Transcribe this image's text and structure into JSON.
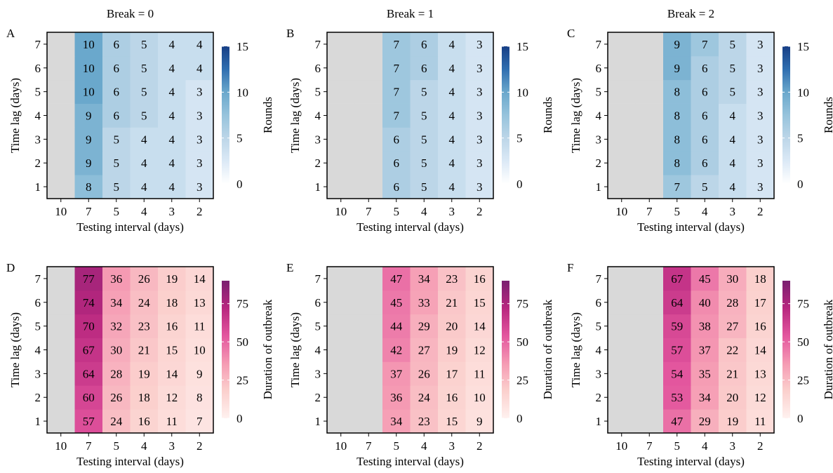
{
  "chart_data": [
    {
      "type": "heatmap",
      "panel_label": "A",
      "title": "Break = 0",
      "xlabel": "Testing interval (days)",
      "ylabel": "Time lag (days)",
      "x_categories": [
        "10",
        "7",
        "5",
        "4",
        "3",
        "2"
      ],
      "y_categories": [
        "1",
        "2",
        "3",
        "4",
        "5",
        "6",
        "7"
      ],
      "values": [
        [
          null,
          8,
          5,
          4,
          4,
          3
        ],
        [
          null,
          9,
          5,
          4,
          4,
          3
        ],
        [
          null,
          9,
          5,
          4,
          4,
          3
        ],
        [
          null,
          9,
          6,
          5,
          4,
          3
        ],
        [
          null,
          10,
          6,
          5,
          4,
          3
        ],
        [
          null,
          10,
          6,
          5,
          4,
          4
        ],
        [
          null,
          10,
          6,
          5,
          4,
          4
        ]
      ],
      "colorbar": {
        "label": "Rounds",
        "range": [
          0,
          15
        ],
        "ticks": [
          0,
          5,
          10,
          15
        ],
        "palette": "blue"
      },
      "missing_color": "#d9d9d9"
    },
    {
      "type": "heatmap",
      "panel_label": "B",
      "title": "Break = 1",
      "xlabel": "Testing interval (days)",
      "ylabel": "Time lag (days)",
      "x_categories": [
        "10",
        "7",
        "5",
        "4",
        "3",
        "2"
      ],
      "y_categories": [
        "1",
        "2",
        "3",
        "4",
        "5",
        "6",
        "7"
      ],
      "values": [
        [
          null,
          null,
          6,
          5,
          4,
          3
        ],
        [
          null,
          null,
          6,
          5,
          4,
          3
        ],
        [
          null,
          null,
          6,
          5,
          4,
          3
        ],
        [
          null,
          null,
          7,
          5,
          4,
          3
        ],
        [
          null,
          null,
          7,
          5,
          4,
          3
        ],
        [
          null,
          null,
          7,
          6,
          4,
          3
        ],
        [
          null,
          null,
          7,
          6,
          4,
          3
        ]
      ],
      "colorbar": {
        "label": "Rounds",
        "range": [
          0,
          15
        ],
        "ticks": [
          0,
          5,
          10,
          15
        ],
        "palette": "blue"
      },
      "missing_color": "#d9d9d9"
    },
    {
      "type": "heatmap",
      "panel_label": "C",
      "title": "Break = 2",
      "xlabel": "Testing interval (days)",
      "ylabel": "Time lag (days)",
      "x_categories": [
        "10",
        "7",
        "5",
        "4",
        "3",
        "2"
      ],
      "y_categories": [
        "1",
        "2",
        "3",
        "4",
        "5",
        "6",
        "7"
      ],
      "values": [
        [
          null,
          null,
          7,
          5,
          4,
          3
        ],
        [
          null,
          null,
          8,
          6,
          4,
          3
        ],
        [
          null,
          null,
          8,
          6,
          4,
          3
        ],
        [
          null,
          null,
          8,
          6,
          4,
          3
        ],
        [
          null,
          null,
          8,
          6,
          5,
          3
        ],
        [
          null,
          null,
          9,
          6,
          5,
          3
        ],
        [
          null,
          null,
          9,
          7,
          5,
          3
        ]
      ],
      "colorbar": {
        "label": "Rounds",
        "range": [
          0,
          15
        ],
        "ticks": [
          0,
          5,
          10,
          15
        ],
        "palette": "blue"
      },
      "missing_color": "#d9d9d9"
    },
    {
      "type": "heatmap",
      "panel_label": "D",
      "title": "",
      "xlabel": "Testing interval (days)",
      "ylabel": "Time lag (days)",
      "x_categories": [
        "10",
        "7",
        "5",
        "4",
        "3",
        "2"
      ],
      "y_categories": [
        "1",
        "2",
        "3",
        "4",
        "5",
        "6",
        "7"
      ],
      "values": [
        [
          null,
          57,
          24,
          16,
          11,
          7
        ],
        [
          null,
          60,
          26,
          18,
          12,
          8
        ],
        [
          null,
          64,
          28,
          19,
          14,
          9
        ],
        [
          null,
          67,
          30,
          21,
          15,
          10
        ],
        [
          null,
          70,
          32,
          23,
          16,
          11
        ],
        [
          null,
          74,
          34,
          24,
          18,
          13
        ],
        [
          null,
          77,
          36,
          26,
          19,
          14
        ]
      ],
      "colorbar": {
        "label": "Duration of outbreak",
        "range": [
          0,
          90
        ],
        "ticks": [
          0,
          25,
          50,
          75
        ],
        "palette": "pink"
      },
      "missing_color": "#d9d9d9"
    },
    {
      "type": "heatmap",
      "panel_label": "E",
      "title": "",
      "xlabel": "Testing interval (days)",
      "ylabel": "Time lag (days)",
      "x_categories": [
        "10",
        "7",
        "5",
        "4",
        "3",
        "2"
      ],
      "y_categories": [
        "1",
        "2",
        "3",
        "4",
        "5",
        "6",
        "7"
      ],
      "values": [
        [
          null,
          null,
          34,
          23,
          15,
          9
        ],
        [
          null,
          null,
          36,
          24,
          16,
          10
        ],
        [
          null,
          null,
          37,
          26,
          17,
          11
        ],
        [
          null,
          null,
          42,
          27,
          19,
          12
        ],
        [
          null,
          null,
          44,
          29,
          20,
          14
        ],
        [
          null,
          null,
          45,
          33,
          21,
          15
        ],
        [
          null,
          null,
          47,
          34,
          23,
          16
        ]
      ],
      "colorbar": {
        "label": "Duration of outbreak",
        "range": [
          0,
          90
        ],
        "ticks": [
          0,
          25,
          50,
          75
        ],
        "palette": "pink"
      },
      "missing_color": "#d9d9d9"
    },
    {
      "type": "heatmap",
      "panel_label": "F",
      "title": "",
      "xlabel": "Testing interval (days)",
      "ylabel": "Time lag (days)",
      "x_categories": [
        "10",
        "7",
        "5",
        "4",
        "3",
        "2"
      ],
      "y_categories": [
        "1",
        "2",
        "3",
        "4",
        "5",
        "6",
        "7"
      ],
      "values": [
        [
          null,
          null,
          47,
          29,
          19,
          11
        ],
        [
          null,
          null,
          53,
          34,
          20,
          12
        ],
        [
          null,
          null,
          54,
          35,
          21,
          13
        ],
        [
          null,
          null,
          57,
          37,
          22,
          14
        ],
        [
          null,
          null,
          59,
          38,
          27,
          16
        ],
        [
          null,
          null,
          64,
          40,
          28,
          17
        ],
        [
          null,
          null,
          67,
          45,
          30,
          18
        ]
      ],
      "colorbar": {
        "label": "Duration of outbreak",
        "range": [
          0,
          90
        ],
        "ticks": [
          0,
          25,
          50,
          75
        ],
        "palette": "pink"
      },
      "missing_color": "#d9d9d9"
    }
  ],
  "palettes": {
    "blue": [
      "#ffffff",
      "#dbe9f6",
      "#bcd6e8",
      "#96c3dc",
      "#6aa8cc",
      "#2f6eb0",
      "#173f86"
    ],
    "pink": [
      "#fff1ef",
      "#fbd0cd",
      "#f59ab3",
      "#e3569e",
      "#b8277f",
      "#7a1f70"
    ]
  }
}
